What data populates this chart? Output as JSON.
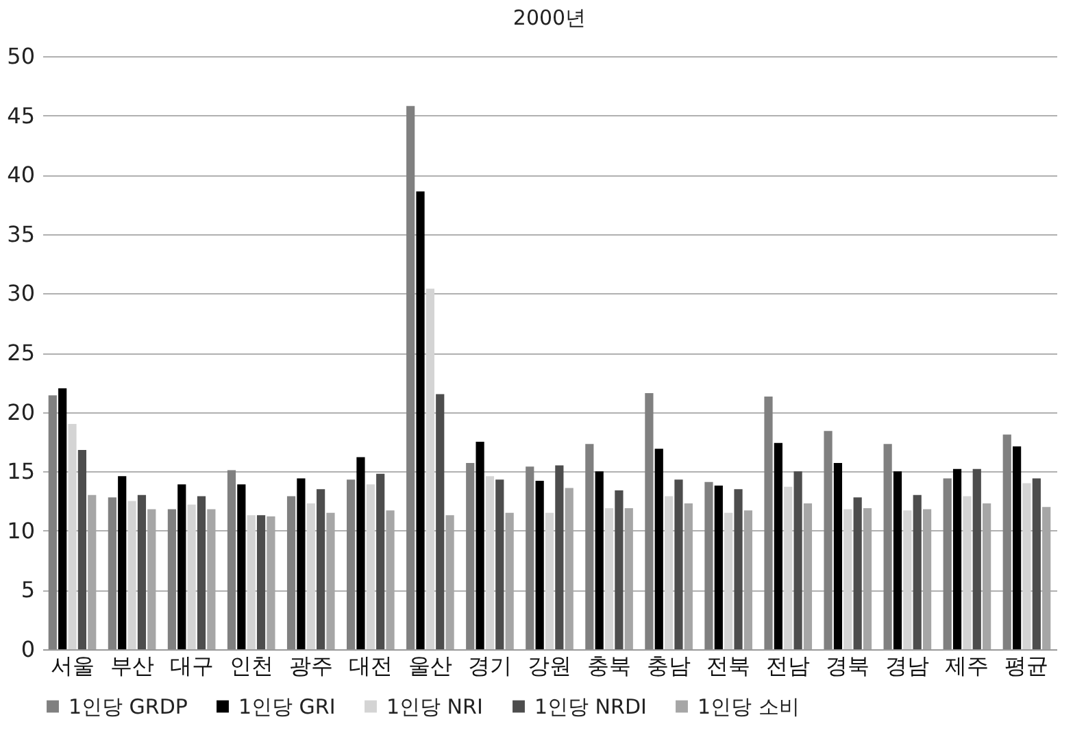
{
  "chart_data": {
    "type": "bar",
    "title": "2000년",
    "categories": [
      "서울",
      "부산",
      "대구",
      "인천",
      "광주",
      "대전",
      "울산",
      "경기",
      "강원",
      "충북",
      "충남",
      "전북",
      "전남",
      "경북",
      "경남",
      "제주",
      "평균"
    ],
    "series": [
      {
        "name": "1인당 GRDP",
        "color": "#808080",
        "values": [
          21.4,
          12.8,
          11.8,
          15.1,
          12.9,
          14.3,
          45.8,
          15.7,
          15.4,
          17.3,
          21.6,
          14.1,
          21.3,
          18.4,
          17.3,
          14.4,
          18.1
        ]
      },
      {
        "name": "1인당 GRI",
        "color": "#000000",
        "values": [
          22.0,
          14.6,
          13.9,
          13.9,
          14.4,
          16.2,
          38.6,
          17.5,
          14.2,
          15.0,
          16.9,
          13.8,
          17.4,
          15.7,
          15.0,
          15.2,
          17.1
        ]
      },
      {
        "name": "1인당 NRI",
        "color": "#d4d4d4",
        "values": [
          19.0,
          12.5,
          12.2,
          11.3,
          12.3,
          13.9,
          30.4,
          14.6,
          11.5,
          11.9,
          12.9,
          11.5,
          13.7,
          11.8,
          11.7,
          12.9,
          14.0
        ]
      },
      {
        "name": "1인당 NRDI",
        "color": "#4d4d4d",
        "values": [
          16.8,
          13.0,
          12.9,
          11.3,
          13.5,
          14.8,
          21.5,
          14.3,
          15.5,
          13.4,
          14.3,
          13.5,
          15.0,
          12.8,
          13.0,
          15.2,
          14.4
        ]
      },
      {
        "name": "1인당 소비",
        "color": "#a6a6a6",
        "values": [
          13.0,
          11.8,
          11.8,
          11.2,
          11.5,
          11.7,
          11.3,
          11.5,
          13.6,
          11.9,
          12.3,
          11.7,
          12.3,
          11.9,
          11.8,
          12.3,
          12.0
        ]
      }
    ],
    "ylim": [
      0,
      50
    ],
    "yticks": [
      0,
      5,
      10,
      15,
      20,
      25,
      30,
      35,
      40,
      45,
      50
    ],
    "grid": "y",
    "legend": "bottom"
  }
}
